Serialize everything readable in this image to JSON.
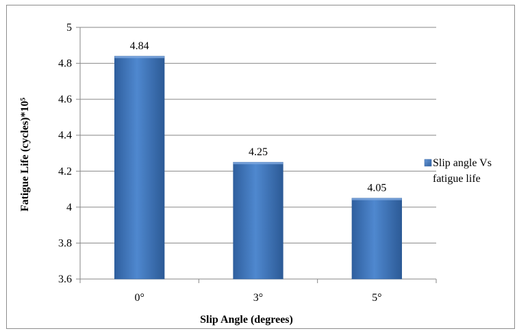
{
  "chart_data": {
    "type": "bar",
    "categories": [
      "0°",
      "3°",
      "5°"
    ],
    "series": [
      {
        "name": "Slip angle Vs fatigue life",
        "values": [
          4.84,
          4.25,
          4.05
        ],
        "color": "#4a7ebb"
      }
    ],
    "data_labels": [
      "4.84",
      "4.25",
      "4.05"
    ],
    "xlabel": "Slip Angle (degrees)",
    "ylabel": "Fatigue Life (cycles)*10⁵",
    "ylim": [
      3.6,
      5
    ],
    "yticks": [
      3.6,
      3.8,
      4,
      4.2,
      4.4,
      4.6,
      4.8,
      5
    ],
    "ytick_labels": [
      "3.6",
      "3.8",
      "4",
      "4.2",
      "4.4",
      "4.6",
      "4.8",
      "5"
    ],
    "grid": true,
    "legend_position": "right"
  },
  "legend": {
    "line1": "Slip angle Vs",
    "line2": "fatigue life"
  }
}
